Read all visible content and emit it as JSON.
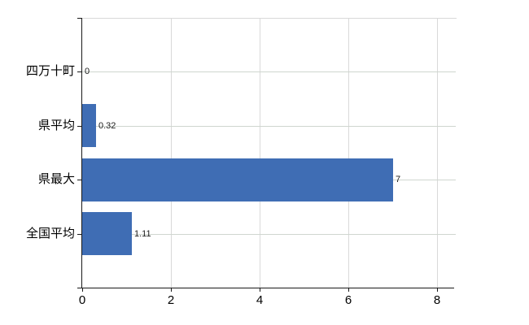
{
  "chart_data": {
    "type": "bar",
    "orientation": "horizontal",
    "title": "",
    "xlabel": "",
    "ylabel": "",
    "categories": [
      "四万十町",
      "県平均",
      "県最大",
      "全国平均"
    ],
    "values": [
      0,
      0.32,
      7,
      1.11
    ],
    "value_labels": [
      "0",
      "0.32",
      "7",
      "1.11"
    ],
    "x_ticks": [
      0,
      2,
      4,
      6,
      8
    ],
    "x_tick_labels": [
      "0",
      "2",
      "4",
      "6",
      "8"
    ],
    "xlim": [
      0,
      8.42
    ],
    "grid": true,
    "legend": false,
    "bar_color": "#3f6db4",
    "vertical_gridline_color": "#d9d9d9",
    "row_line_color": "#cfd6cf",
    "axis_color": "#1a1a1a",
    "text_color": "#000000"
  }
}
